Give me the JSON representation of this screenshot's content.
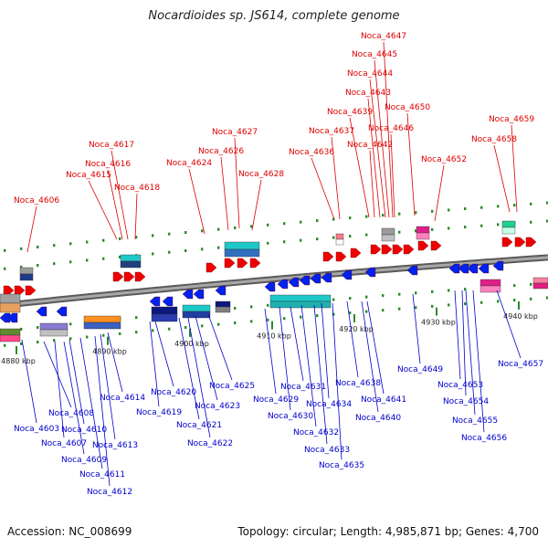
{
  "title": "Nocardioides sp. JS614, complete genome",
  "footer": {
    "accession": "Accession: NC_008699",
    "summary": "Topology: circular; Length: 4,985,871 bp; Genes: 4,700"
  },
  "colors": {
    "label_top": "#dd0000",
    "label_bottom": "#0000cc",
    "forward_gene": "#ee0000",
    "reverse_gene": "#0022ee",
    "backbone": "#808080",
    "tick": "#2a8a2a"
  },
  "scale_ticks": [
    {
      "label": "4880 kbp"
    },
    {
      "label": "4890 kbp"
    },
    {
      "label": "4900 kbp"
    },
    {
      "label": "4910 kbp"
    },
    {
      "label": "4920 kbp"
    },
    {
      "label": "4930 kbp"
    },
    {
      "label": "4940 kbp"
    }
  ],
  "genes_top": [
    "Noca_4606",
    "Noca_4615",
    "Noca_4616",
    "Noca_4617",
    "Noca_4618",
    "Noca_4624",
    "Noca_4626",
    "Noca_4627",
    "Noca_4628",
    "Noca_4636",
    "Noca_4637",
    "Noca_4639",
    "Noca_4642",
    "Noca_4643",
    "Noca_4644",
    "Noca_4645",
    "Noca_4647",
    "Noca_4646",
    "Noca_4650",
    "Noca_4652",
    "Noca_4658",
    "Noca_4659"
  ],
  "genes_bottom": [
    "Noca_4603",
    "Noca_4608",
    "Noca_4607",
    "Noca_4610",
    "Noca_4609",
    "Noca_4611",
    "Noca_4612",
    "Noca_4613",
    "Noca_4614",
    "Noca_4620",
    "Noca_4619",
    "Noca_4621",
    "Noca_4622",
    "Noca_4623",
    "Noca_4625",
    "Noca_4629",
    "Noca_4630",
    "Noca_4631",
    "Noca_4632",
    "Noca_4633",
    "Noca_4634",
    "Noca_4635",
    "Noca_4638",
    "Noca_4641",
    "Noca_4640",
    "Noca_4649",
    "Noca_4653",
    "Noca_4654",
    "Noca_4655",
    "Noca_4656",
    "Noca_4657"
  ]
}
